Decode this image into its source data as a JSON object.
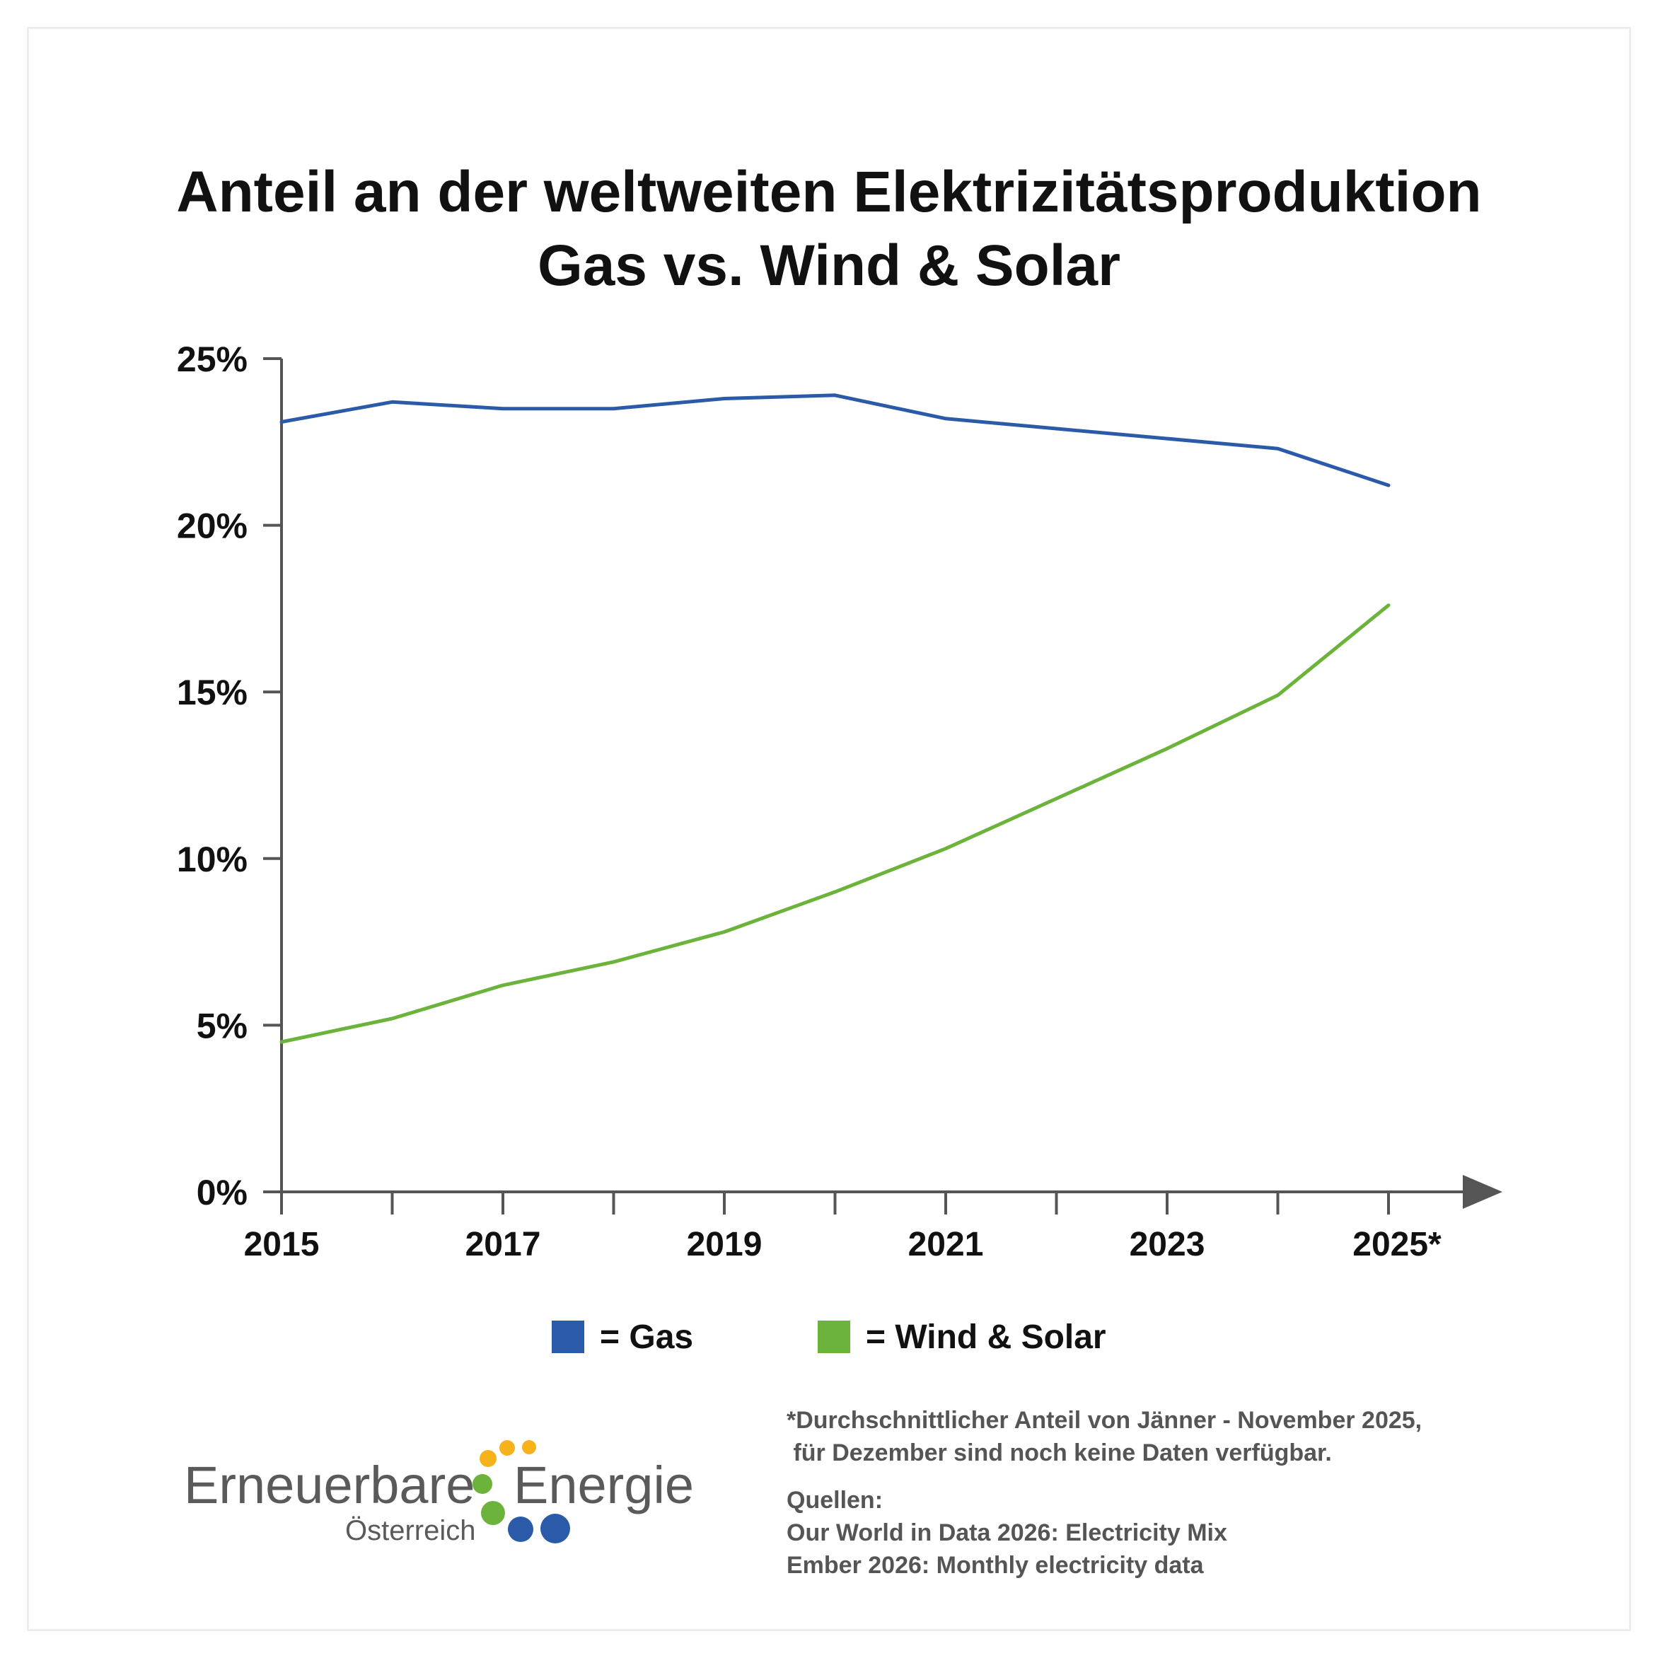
{
  "title_line1": "Anteil an der weltweiten Elektrizitätsproduktion",
  "title_line2": "Gas vs. Wind & Solar",
  "legend": [
    {
      "label": "= Gas",
      "color": "#2b5ba8"
    },
    {
      "label": "= Wind & Solar",
      "color": "#6bb33a"
    }
  ],
  "footnote": "*Durchschnittlicher Anteil von Jänner - November 2025,\n für Dezember sind noch keine Daten verfügbar.",
  "sources": "Quellen:\nOur World in Data 2026: Electricity Mix\nEmber 2026: Monthly electricity data",
  "logo": {
    "word1": "Erneuerbare",
    "word2": "Energie",
    "sub": "Österreich",
    "dot_colors": [
      "#f5b21b",
      "#6bb33a",
      "#2b5ba8"
    ]
  },
  "chart_data": {
    "type": "line",
    "title": "Anteil an der weltweiten Elektrizitätsproduktion Gas vs. Wind & Solar",
    "xlabel": "",
    "ylabel": "",
    "x": [
      "2015",
      "2016",
      "2017",
      "2018",
      "2019",
      "2020",
      "2021",
      "2022",
      "2023",
      "2024",
      "2025*"
    ],
    "x_tick_labels": [
      "2015",
      "2017",
      "2019",
      "2021",
      "2023",
      "2025*"
    ],
    "y_tick_labels": [
      "0%",
      "5%",
      "10%",
      "15%",
      "20%",
      "25%"
    ],
    "ylim": [
      0,
      25
    ],
    "grid": false,
    "legend_position": "bottom",
    "series": [
      {
        "name": "Gas",
        "color": "#2b5ba8",
        "values": [
          23.1,
          23.7,
          23.5,
          23.5,
          23.8,
          23.9,
          23.2,
          22.9,
          22.6,
          22.3,
          21.2
        ]
      },
      {
        "name": "Wind & Solar",
        "color": "#6bb33a",
        "values": [
          4.5,
          5.2,
          6.2,
          6.9,
          7.8,
          9.0,
          10.3,
          11.8,
          13.3,
          14.9,
          17.6
        ]
      }
    ]
  }
}
